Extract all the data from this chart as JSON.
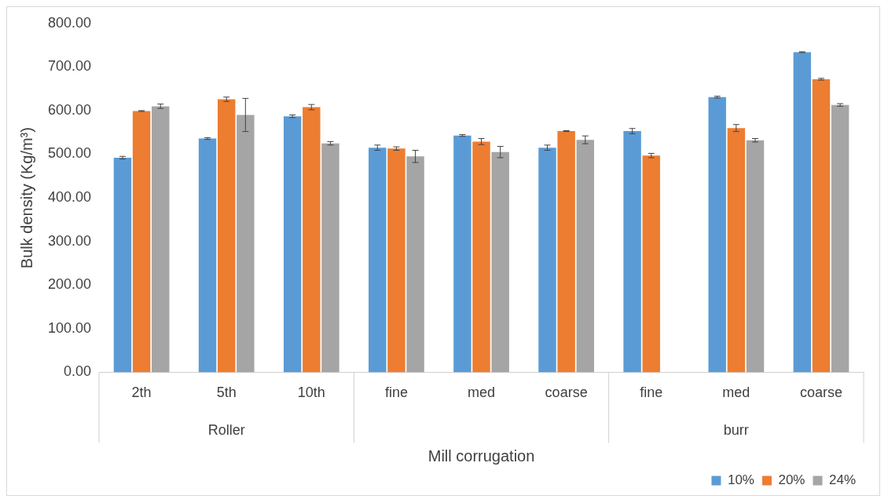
{
  "chart_data": {
    "type": "bar",
    "xlabel": "Mill corrugation",
    "ylabel": "Bulk density (Kg/m³)",
    "categories": [
      "2th",
      "5th",
      "10th",
      "fine",
      "med",
      "coarse",
      "fine",
      "med",
      "coarse"
    ],
    "series": [
      {
        "name": "10%",
        "color": "#5b9bd5",
        "values": [
          492,
          536,
          587,
          515,
          543,
          515,
          553,
          631,
          734
        ],
        "errors": [
          3,
          2,
          3,
          6,
          2,
          6,
          6,
          2,
          1
        ]
      },
      {
        "name": "20%",
        "color": "#ed7d31",
        "values": [
          599,
          626,
          608,
          513,
          529,
          553,
          497,
          560,
          672
        ],
        "errors": [
          1,
          5,
          6,
          4,
          7,
          1,
          5,
          8,
          2
        ]
      },
      {
        "name": "24%",
        "color": "#a5a5a5",
        "values": [
          610,
          590,
          525,
          495,
          505,
          533,
          null,
          532,
          613
        ],
        "errors": [
          5,
          38,
          4,
          14,
          13,
          9,
          null,
          4,
          3
        ]
      }
    ],
    "ylim": [
      0,
      800
    ],
    "yticks": [
      {
        "value": 0,
        "label": "0.00"
      },
      {
        "value": 100,
        "label": "100.00"
      },
      {
        "value": 200,
        "label": "200.00"
      },
      {
        "value": 300,
        "label": "300.00"
      },
      {
        "value": 400,
        "label": "400.00"
      },
      {
        "value": 500,
        "label": "500.00"
      },
      {
        "value": 600,
        "label": "600.00"
      },
      {
        "value": 700,
        "label": "700.00"
      },
      {
        "value": 800,
        "label": "800.00"
      }
    ],
    "annotations": [
      "Roller",
      "burr"
    ],
    "grid": false,
    "legend": "bottom right"
  }
}
